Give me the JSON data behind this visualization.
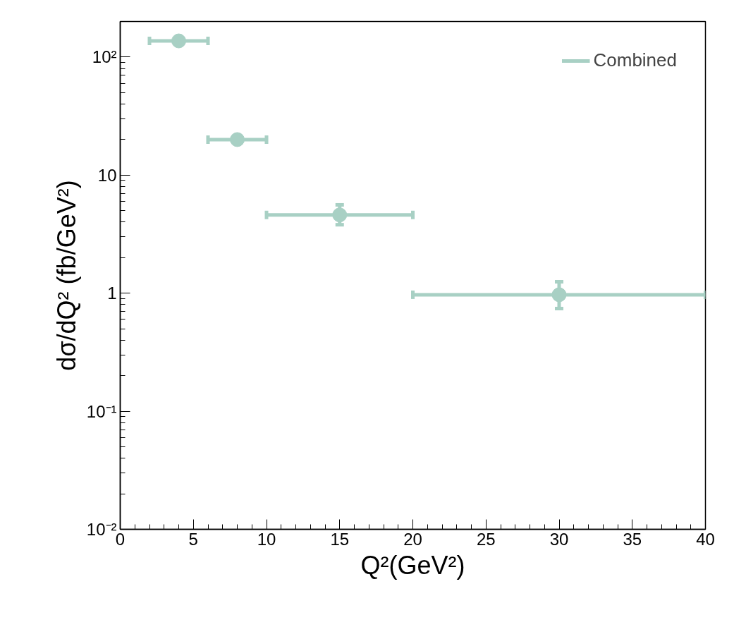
{
  "chart_data": {
    "type": "scatter",
    "xlabel": "Q²(GeV²)",
    "ylabel": "dσ/dQ² (fb/GeV²)",
    "x": [
      4,
      8,
      15,
      30
    ],
    "series": [
      {
        "name": "Combined",
        "color": "#a8d0c4",
        "values": [
          137,
          20,
          4.6,
          0.97
        ],
        "errors": [
          null,
          null,
          [
            3.8,
            5.6
          ],
          [
            0.74,
            1.25
          ]
        ],
        "xerrors": [
          [
            2,
            6
          ],
          [
            6,
            10
          ],
          [
            10,
            20
          ],
          [
            20,
            40
          ]
        ]
      }
    ],
    "xlim": [
      0,
      40
    ],
    "ylim": [
      0.01,
      200
    ],
    "xticks": [
      0,
      5,
      10,
      15,
      20,
      25,
      30,
      35,
      40
    ],
    "yticks": [
      {
        "value": 0.01,
        "label": "10⁻²"
      },
      {
        "value": 0.1,
        "label": "10⁻¹"
      },
      {
        "value": 1,
        "label": "1"
      },
      {
        "value": 10,
        "label": "10"
      },
      {
        "value": 100,
        "label": "10²"
      }
    ],
    "log": "y",
    "grid": false,
    "legend": "top right",
    "marker": "circle"
  }
}
